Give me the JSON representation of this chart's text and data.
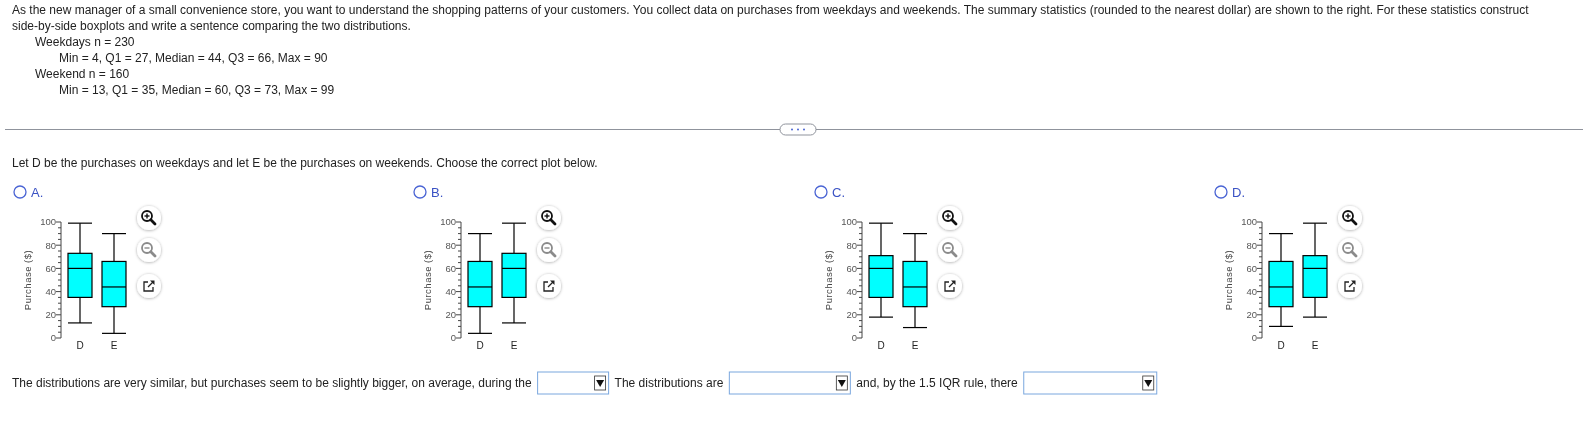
{
  "chart_data": [
    {
      "type": "other",
      "title": "As the new manager of a small convenience store, you want to understand the shopping patterns of your customers. You collect data on purchases from weekdays and weekends. The summary statistics (rounded to the nearest dollar) are shown to the right. For these statistics construct side-by-side boxplots and write a sentence comparing the two distributions.",
      "annotations": [
        "Weekdays n = 230",
        "Min = 4, Q1 = 27, Median = 44, Q3 = 66, Max = 90",
        "Weekend n = 160",
        "Min = 13, Q1 = 35, Median = 60, Q3 = 73, Max = 99"
      ]
    },
    {
      "type": "other",
      "title": "Let D be the purchases on weekdays and let E be the purchases on weekends. Choose the correct plot below."
    },
    {
      "type": "box",
      "title": "A.",
      "ylabel": "Purchase ($)",
      "categories": [
        "D",
        "E"
      ],
      "color": "#00ffff",
      "boxes": [
        {
          "low": 13,
          "q1": 35,
          "median": 60,
          "q3": 73,
          "high": 99
        },
        {
          "low": 4,
          "q1": 27,
          "median": 44,
          "q3": 66,
          "high": 90
        }
      ],
      "ylim": [
        0,
        100
      ],
      "yticks": [
        0,
        {
          "value": 5,
          "label": null
        },
        {
          "value": 10,
          "label": null
        },
        {
          "value": 15,
          "label": null
        },
        20,
        {
          "value": 25,
          "label": null
        },
        {
          "value": 30,
          "label": null
        },
        {
          "value": 35,
          "label": null
        },
        40,
        {
          "value": 45,
          "label": null
        },
        {
          "value": 50,
          "label": null
        },
        {
          "value": 55,
          "label": null
        },
        60,
        {
          "value": 65,
          "label": null
        },
        {
          "value": 70,
          "label": null
        },
        {
          "value": 75,
          "label": null
        },
        80,
        {
          "value": 85,
          "label": null
        },
        {
          "value": 90,
          "label": null
        },
        {
          "value": 95,
          "label": null
        },
        100
      ]
    },
    {
      "type": "box",
      "title": "B.",
      "ylabel": "Purchase ($)",
      "categories": [
        "D",
        "E"
      ],
      "color": "#00ffff",
      "boxes": [
        {
          "low": 4,
          "q1": 27,
          "median": 44,
          "q3": 66,
          "high": 90
        },
        {
          "low": 13,
          "q1": 35,
          "median": 60,
          "q3": 73,
          "high": 99
        }
      ],
      "ylim": [
        0,
        100
      ],
      "yticks": [
        0,
        {
          "value": 5,
          "label": null
        },
        {
          "value": 10,
          "label": null
        },
        {
          "value": 15,
          "label": null
        },
        20,
        {
          "value": 25,
          "label": null
        },
        {
          "value": 30,
          "label": null
        },
        {
          "value": 35,
          "label": null
        },
        40,
        {
          "value": 45,
          "label": null
        },
        {
          "value": 50,
          "label": null
        },
        {
          "value": 55,
          "label": null
        },
        60,
        {
          "value": 65,
          "label": null
        },
        {
          "value": 70,
          "label": null
        },
        {
          "value": 75,
          "label": null
        },
        80,
        {
          "value": 85,
          "label": null
        },
        {
          "value": 90,
          "label": null
        },
        {
          "value": 95,
          "label": null
        },
        100
      ]
    },
    {
      "type": "box",
      "title": "C.",
      "ylabel": "Purchase ($)",
      "categories": [
        "D",
        "E"
      ],
      "color": "#00ffff",
      "boxes": [
        {
          "low": 18,
          "q1": 35,
          "median": 60,
          "q3": 71,
          "high": 99
        },
        {
          "low": 9,
          "q1": 27,
          "median": 44,
          "q3": 66,
          "high": 90
        }
      ],
      "ylim": [
        0,
        100
      ],
      "yticks": [
        0,
        {
          "value": 5,
          "label": null
        },
        {
          "value": 10,
          "label": null
        },
        {
          "value": 15,
          "label": null
        },
        20,
        {
          "value": 25,
          "label": null
        },
        {
          "value": 30,
          "label": null
        },
        {
          "value": 35,
          "label": null
        },
        40,
        {
          "value": 45,
          "label": null
        },
        {
          "value": 50,
          "label": null
        },
        {
          "value": 55,
          "label": null
        },
        60,
        {
          "value": 65,
          "label": null
        },
        {
          "value": 70,
          "label": null
        },
        {
          "value": 75,
          "label": null
        },
        80,
        {
          "value": 85,
          "label": null
        },
        {
          "value": 90,
          "label": null
        },
        {
          "value": 95,
          "label": null
        },
        100
      ]
    },
    {
      "type": "box",
      "title": "D.",
      "ylabel": "Purchase ($)",
      "categories": [
        "D",
        "E"
      ],
      "color": "#00ffff",
      "boxes": [
        {
          "low": 10,
          "q1": 27,
          "median": 44,
          "q3": 66,
          "high": 90
        },
        {
          "low": 18,
          "q1": 35,
          "median": 60,
          "q3": 71,
          "high": 99
        }
      ],
      "ylim": [
        0,
        100
      ],
      "yticks": [
        0,
        {
          "value": 5,
          "label": null
        },
        {
          "value": 10,
          "label": null
        },
        {
          "value": 15,
          "label": null
        },
        20,
        {
          "value": 25,
          "label": null
        },
        {
          "value": 30,
          "label": null
        },
        {
          "value": 35,
          "label": null
        },
        40,
        {
          "value": 45,
          "label": null
        },
        {
          "value": 50,
          "label": null
        },
        {
          "value": 55,
          "label": null
        },
        60,
        {
          "value": 65,
          "label": null
        },
        {
          "value": 70,
          "label": null
        },
        {
          "value": 75,
          "label": null
        },
        80,
        {
          "value": 85,
          "label": null
        },
        {
          "value": 90,
          "label": null
        },
        {
          "value": 95,
          "label": null
        },
        100
      ]
    },
    {
      "type": "other",
      "annotations": [
        "The distributions are very similar, but purchases seem to be slightly bigger, on average, during the",
        "The distributions are",
        "and, by the 1.5 IQR rule, there"
      ]
    }
  ]
}
